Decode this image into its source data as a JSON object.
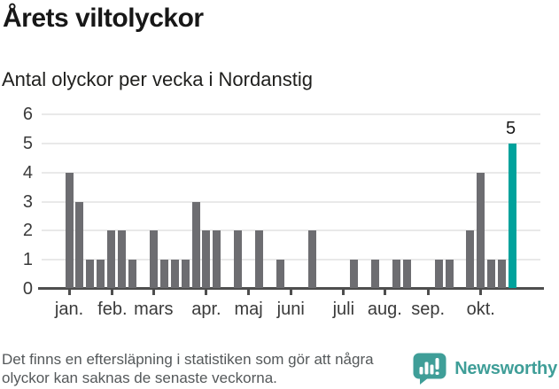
{
  "header": {
    "title": "Årets viltolyckor",
    "subtitle": "Antal olyckor per vecka i Nordanstig"
  },
  "chart_data": {
    "type": "bar",
    "title": "Årets viltolyckor",
    "subtitle": "Antal olyckor per vecka i Nordanstig",
    "ylim": [
      0,
      6
    ],
    "y_ticks": [
      0,
      1,
      2,
      3,
      4,
      5,
      6
    ],
    "grid": true,
    "values": [
      4,
      3,
      1,
      1,
      2,
      2,
      1,
      0,
      2,
      1,
      1,
      1,
      3,
      2,
      2,
      0,
      2,
      0,
      2,
      0,
      1,
      0,
      0,
      2,
      0,
      0,
      0,
      1,
      0,
      1,
      0,
      1,
      1,
      0,
      0,
      1,
      1,
      0,
      2,
      4,
      1,
      1,
      5
    ],
    "highlight_index": 42,
    "highlight_value": 5,
    "highlight_label": "5",
    "months": [
      {
        "label": "jan.",
        "week": 0
      },
      {
        "label": "feb.",
        "week": 4.1
      },
      {
        "label": "mars",
        "week": 8
      },
      {
        "label": "apr.",
        "week": 13
      },
      {
        "label": "maj",
        "week": 17
      },
      {
        "label": "juni",
        "week": 21
      },
      {
        "label": "juli",
        "week": 26
      },
      {
        "label": "aug.",
        "week": 29.9
      },
      {
        "label": "sep.",
        "week": 34
      },
      {
        "label": "okt.",
        "week": 39
      }
    ],
    "bar_color": "#6d6d71",
    "highlight_color": "#00a29c"
  },
  "footer": {
    "disclaimer": "Det finns en eftersläpning i statistiken som gör att några olyckor kan saknas de senaste veckorna.",
    "brand": "Newsworthy",
    "brand_color": "#3f9e98"
  }
}
